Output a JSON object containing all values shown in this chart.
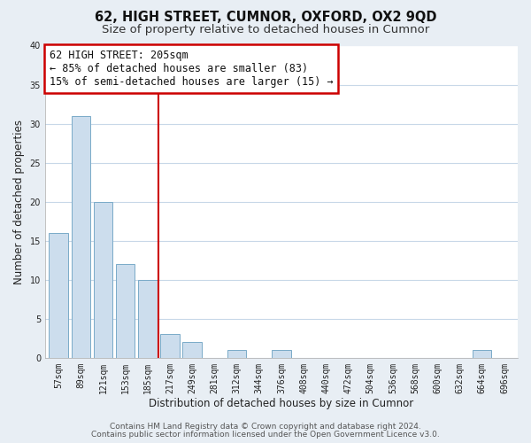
{
  "title": "62, HIGH STREET, CUMNOR, OXFORD, OX2 9QD",
  "subtitle": "Size of property relative to detached houses in Cumnor",
  "xlabel": "Distribution of detached houses by size in Cumnor",
  "ylabel": "Number of detached properties",
  "bar_color": "#ccdded",
  "bar_edge_color": "#7aaac8",
  "bins": [
    "57sqm",
    "89sqm",
    "121sqm",
    "153sqm",
    "185sqm",
    "217sqm",
    "249sqm",
    "281sqm",
    "312sqm",
    "344sqm",
    "376sqm",
    "408sqm",
    "440sqm",
    "472sqm",
    "504sqm",
    "536sqm",
    "568sqm",
    "600sqm",
    "632sqm",
    "664sqm",
    "696sqm"
  ],
  "counts": [
    16,
    31,
    20,
    12,
    10,
    3,
    2,
    0,
    1,
    0,
    1,
    0,
    0,
    0,
    0,
    0,
    0,
    0,
    0,
    1,
    0
  ],
  "ylim": [
    0,
    40
  ],
  "yticks": [
    0,
    5,
    10,
    15,
    20,
    25,
    30,
    35,
    40
  ],
  "marker_label": "62 HIGH STREET: 205sqm",
  "annotation_line1": "← 85% of detached houses are smaller (83)",
  "annotation_line2": "15% of semi-detached houses are larger (15) →",
  "footer_line1": "Contains HM Land Registry data © Crown copyright and database right 2024.",
  "footer_line2": "Contains public sector information licensed under the Open Government Licence v3.0.",
  "bg_color": "#e8eef4",
  "plot_bg_color": "#ffffff",
  "grid_color": "#c8d8e8",
  "title_fontsize": 10.5,
  "subtitle_fontsize": 9.5,
  "axis_label_fontsize": 8.5,
  "tick_fontsize": 7,
  "footer_fontsize": 6.5,
  "annot_fontsize": 8.5
}
